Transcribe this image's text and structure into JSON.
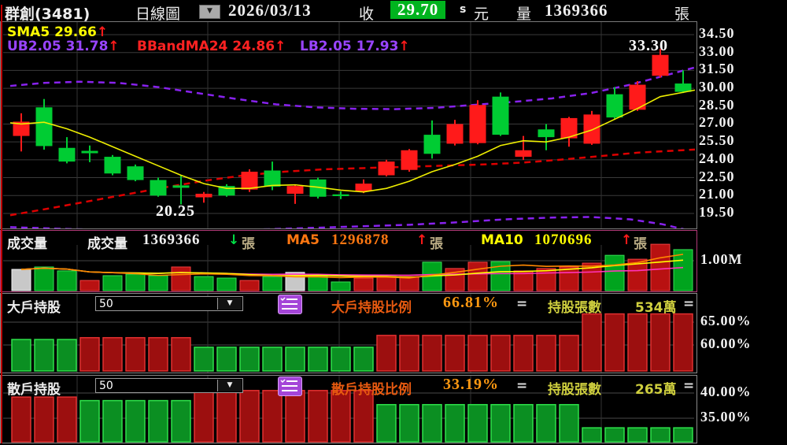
{
  "header": {
    "stock": "群創(3481)",
    "period": "日線圖",
    "date": "2026/03/13",
    "close_label": "收",
    "close": "29.70",
    "close_suffix": "s",
    "unit": "元",
    "volume_label": "量",
    "volume": "1369366",
    "volume_unit": "張",
    "close_box_color": "#00b41e"
  },
  "main": {
    "indicators": [
      {
        "label": "SMA5",
        "value": "29.66",
        "arrow": "↑",
        "color": "#ffff00"
      },
      {
        "label": "UB2.05",
        "value": "31.78",
        "arrow": "↑",
        "color": "#9944ff"
      },
      {
        "label": "BBandMA24",
        "value": "24.86",
        "arrow": "↑",
        "color": "#ff2222"
      },
      {
        "label": "LB2.05",
        "value": "17.93",
        "arrow": "↑",
        "color": "#9944ff"
      }
    ],
    "annotations": [
      {
        "text": "33.30"
      },
      {
        "text": "20.25"
      }
    ]
  },
  "volume_panel": {
    "title": "成交量",
    "vol_label": "成交量",
    "vol_value": "1369366",
    "vol_arrow": "↓",
    "vol_unit": "張",
    "ma5_label": "MA5",
    "ma5_value": "1296878",
    "ma5_arrow": "↑",
    "ma5_unit": "張",
    "ma10_label": "MA10",
    "ma10_value": "1070696",
    "ma10_arrow": "↑",
    "ma10_unit": "張"
  },
  "holder_panels": [
    {
      "title": "大戶持股",
      "dropdown_value": "50",
      "ratio_label": "大戶持股比例",
      "ratio_value": "66.81%",
      "eq": "=",
      "shares_label": "持股張數",
      "shares_value": "534萬",
      "eq2": "="
    },
    {
      "title": "散戶持股",
      "dropdown_value": "50",
      "ratio_label": "散戶持股比例",
      "ratio_value": "33.19%",
      "eq": "=",
      "shares_label": "持股張數",
      "shares_value": "265萬",
      "eq2": "="
    }
  ],
  "colors": {
    "candle_up": "#ff1a1a",
    "candle_down": "#00cc33",
    "bar_red": "#b81111",
    "bar_green": "#00a41e",
    "bar_gray": "#c8c8c8",
    "sma5": "#eeee00",
    "band": "#8822ee",
    "mid_band": "#dd0000",
    "vol_ma5": "#ff8800",
    "vol_ma10": "#ffff00",
    "vol_ma20": "#ff33bb",
    "grid": "#3a3a3a"
  },
  "chart_data": [
    {
      "type": "candlestick",
      "title": "daily price with SMA5 and Bollinger bands",
      "ylim": [
        18.0,
        34.9
      ],
      "y_ticks": [
        34.5,
        33.0,
        31.5,
        30.0,
        28.5,
        27.0,
        25.5,
        24.0,
        22.5,
        21.0,
        19.5
      ],
      "high_label": "33.30",
      "low_label": "20.25",
      "low_label_index": 7,
      "high_label_index": 28,
      "candles": [
        {
          "o": 26.0,
          "h": 27.9,
          "l": 24.7,
          "c": 27.2,
          "dir": "u"
        },
        {
          "o": 28.4,
          "h": 29.1,
          "l": 24.85,
          "c": 25.15,
          "dir": "d"
        },
        {
          "o": 25.0,
          "h": 25.9,
          "l": 23.7,
          "c": 23.85,
          "dir": "d"
        },
        {
          "o": 24.75,
          "h": 25.2,
          "l": 23.8,
          "c": 24.55,
          "dir": "d"
        },
        {
          "o": 24.25,
          "h": 24.4,
          "l": 22.7,
          "c": 22.85,
          "dir": "d"
        },
        {
          "o": 23.45,
          "h": 23.6,
          "l": 22.2,
          "c": 22.3,
          "dir": "d"
        },
        {
          "o": 22.3,
          "h": 22.5,
          "l": 20.9,
          "c": 21.0,
          "dir": "d"
        },
        {
          "o": 21.85,
          "h": 22.7,
          "l": 20.25,
          "c": 21.65,
          "dir": "d"
        },
        {
          "o": 20.85,
          "h": 21.3,
          "l": 20.4,
          "c": 21.15,
          "dir": "u"
        },
        {
          "o": 21.8,
          "h": 21.95,
          "l": 20.9,
          "c": 21.0,
          "dir": "d"
        },
        {
          "o": 21.5,
          "h": 23.2,
          "l": 21.3,
          "c": 23.0,
          "dir": "u"
        },
        {
          "o": 23.1,
          "h": 23.85,
          "l": 21.45,
          "c": 21.75,
          "dir": "d"
        },
        {
          "o": 21.15,
          "h": 21.9,
          "l": 20.3,
          "c": 21.8,
          "dir": "u"
        },
        {
          "o": 22.35,
          "h": 22.5,
          "l": 20.75,
          "c": 20.9,
          "dir": "d"
        },
        {
          "o": 21.1,
          "h": 21.35,
          "l": 20.7,
          "c": 20.95,
          "dir": "d"
        },
        {
          "o": 21.35,
          "h": 22.35,
          "l": 21.2,
          "c": 22.0,
          "dir": "u"
        },
        {
          "o": 22.7,
          "h": 24.0,
          "l": 22.6,
          "c": 23.85,
          "dir": "u"
        },
        {
          "o": 23.15,
          "h": 24.9,
          "l": 23.0,
          "c": 24.8,
          "dir": "u"
        },
        {
          "o": 26.1,
          "h": 27.3,
          "l": 24.1,
          "c": 24.5,
          "dir": "d"
        },
        {
          "o": 25.35,
          "h": 27.35,
          "l": 25.2,
          "c": 27.0,
          "dir": "u"
        },
        {
          "o": 25.4,
          "h": 29.0,
          "l": 25.3,
          "c": 28.6,
          "dir": "u"
        },
        {
          "o": 29.3,
          "h": 29.65,
          "l": 26.0,
          "c": 26.1,
          "dir": "d"
        },
        {
          "o": 24.25,
          "h": 26.0,
          "l": 24.0,
          "c": 24.8,
          "dir": "u"
        },
        {
          "o": 26.55,
          "h": 27.0,
          "l": 24.8,
          "c": 25.9,
          "dir": "d"
        },
        {
          "o": 25.8,
          "h": 27.6,
          "l": 25.1,
          "c": 27.5,
          "dir": "u"
        },
        {
          "o": 25.35,
          "h": 28.1,
          "l": 25.25,
          "c": 27.8,
          "dir": "u"
        },
        {
          "o": 29.5,
          "h": 30.1,
          "l": 27.4,
          "c": 27.55,
          "dir": "d"
        },
        {
          "o": 28.2,
          "h": 30.6,
          "l": 28.1,
          "c": 30.3,
          "dir": "u"
        },
        {
          "o": 31.05,
          "h": 33.3,
          "l": 30.9,
          "c": 32.8,
          "dir": "u"
        },
        {
          "o": 30.4,
          "h": 31.5,
          "l": 29.6,
          "c": 29.7,
          "dir": "d"
        }
      ],
      "overlays": {
        "sma5": [
          [
            12,
            27.1
          ],
          [
            26,
            27.0
          ],
          [
            55,
            27.15
          ],
          [
            84,
            26.6
          ],
          [
            113,
            25.9
          ],
          [
            142,
            25.1
          ],
          [
            171,
            24.3
          ],
          [
            200,
            23.5
          ],
          [
            229,
            22.7
          ],
          [
            258,
            22.0
          ],
          [
            287,
            21.6
          ],
          [
            316,
            21.6
          ],
          [
            345,
            21.85
          ],
          [
            374,
            21.9
          ],
          [
            403,
            21.7
          ],
          [
            432,
            21.45
          ],
          [
            461,
            21.3
          ],
          [
            490,
            21.6
          ],
          [
            519,
            22.2
          ],
          [
            548,
            23.0
          ],
          [
            577,
            23.6
          ],
          [
            606,
            24.3
          ],
          [
            635,
            25.2
          ],
          [
            664,
            25.6
          ],
          [
            693,
            25.5
          ],
          [
            722,
            25.9
          ],
          [
            751,
            26.5
          ],
          [
            780,
            27.4
          ],
          [
            809,
            28.3
          ],
          [
            838,
            29.3
          ],
          [
            867,
            29.66
          ],
          [
            882,
            29.85
          ]
        ],
        "ub": [
          [
            12,
            30.2
          ],
          [
            55,
            30.45
          ],
          [
            100,
            30.55
          ],
          [
            150,
            30.45
          ],
          [
            200,
            30.1
          ],
          [
            250,
            29.6
          ],
          [
            300,
            29.1
          ],
          [
            350,
            28.65
          ],
          [
            400,
            28.4
          ],
          [
            450,
            28.28
          ],
          [
            500,
            28.25
          ],
          [
            550,
            28.35
          ],
          [
            600,
            28.6
          ],
          [
            650,
            28.85
          ],
          [
            700,
            29.15
          ],
          [
            750,
            29.6
          ],
          [
            800,
            30.3
          ],
          [
            840,
            31.0
          ],
          [
            882,
            31.75
          ]
        ],
        "mid": [
          [
            12,
            19.35
          ],
          [
            60,
            19.9
          ],
          [
            110,
            20.5
          ],
          [
            160,
            21.1
          ],
          [
            210,
            21.7
          ],
          [
            260,
            22.25
          ],
          [
            310,
            22.7
          ],
          [
            360,
            23.0
          ],
          [
            410,
            23.2
          ],
          [
            460,
            23.3
          ],
          [
            510,
            23.4
          ],
          [
            560,
            23.5
          ],
          [
            610,
            23.6
          ],
          [
            660,
            23.75
          ],
          [
            710,
            24.0
          ],
          [
            760,
            24.3
          ],
          [
            810,
            24.6
          ],
          [
            882,
            24.86
          ]
        ],
        "lb": [
          [
            12,
            18.35
          ],
          [
            80,
            18.2
          ],
          [
            150,
            18.1
          ],
          [
            220,
            18.05
          ],
          [
            300,
            18.1
          ],
          [
            380,
            18.25
          ],
          [
            450,
            18.4
          ],
          [
            520,
            18.55
          ],
          [
            580,
            18.75
          ],
          [
            640,
            19.0
          ],
          [
            700,
            19.15
          ],
          [
            750,
            19.2
          ],
          [
            800,
            19.0
          ],
          [
            840,
            18.6
          ],
          [
            882,
            17.95
          ]
        ]
      }
    },
    {
      "type": "bar",
      "title": "volume (million shares)",
      "values": [
        0.71,
        0.79,
        0.66,
        0.34,
        0.5,
        0.55,
        0.5,
        0.79,
        0.47,
        0.42,
        0.34,
        0.47,
        0.61,
        0.47,
        0.29,
        0.42,
        0.47,
        0.47,
        0.95,
        0.74,
        0.95,
        0.97,
        0.66,
        0.74,
        0.79,
        0.92,
        1.18,
        1.05,
        1.55,
        1.37
      ],
      "bar_colors": [
        "n",
        "g",
        "g",
        "r",
        "g",
        "g",
        "g",
        "r",
        "g",
        "g",
        "r",
        "g",
        "n",
        "g",
        "g",
        "r",
        "r",
        "r",
        "g",
        "r",
        "r",
        "g",
        "r",
        "r",
        "r",
        "r",
        "g",
        "r",
        "r",
        "g"
      ],
      "gridline": {
        "value": 1.0,
        "label": "1.00M"
      }
    },
    {
      "type": "bar",
      "title": "large holders ratio %",
      "values": [
        61.2,
        61.2,
        61.2,
        61.6,
        61.6,
        61.6,
        61.6,
        61.6,
        59.5,
        59.5,
        59.5,
        59.5,
        59.5,
        59.5,
        59.5,
        59.5,
        62.1,
        62.1,
        62.1,
        62.1,
        62.1,
        62.1,
        62.1,
        62.1,
        62.1,
        66.8,
        66.8,
        66.8,
        66.8,
        66.8
      ],
      "bar_colors": [
        "g",
        "g",
        "g",
        "r",
        "r",
        "r",
        "r",
        "r",
        "g",
        "g",
        "g",
        "g",
        "g",
        "g",
        "g",
        "g",
        "r",
        "r",
        "r",
        "r",
        "r",
        "r",
        "r",
        "r",
        "r",
        "r",
        "r",
        "r",
        "r",
        "r"
      ],
      "y_ticks": [
        {
          "v": 65,
          "label": "65.00%"
        },
        {
          "v": 60,
          "label": "60.00%"
        }
      ]
    },
    {
      "type": "bar",
      "title": "retail holders ratio %",
      "values": [
        39.2,
        39.2,
        39.2,
        38.5,
        38.5,
        38.5,
        38.5,
        38.5,
        40.5,
        40.5,
        40.5,
        40.5,
        40.5,
        40.5,
        40.5,
        40.5,
        37.7,
        37.7,
        37.7,
        37.7,
        37.7,
        37.7,
        37.7,
        37.7,
        37.7,
        33.1,
        33.1,
        33.1,
        33.1,
        33.1
      ],
      "bar_colors": [
        "r",
        "r",
        "r",
        "g",
        "g",
        "g",
        "g",
        "g",
        "r",
        "r",
        "r",
        "r",
        "r",
        "r",
        "r",
        "r",
        "g",
        "g",
        "g",
        "g",
        "g",
        "g",
        "g",
        "g",
        "g",
        "g",
        "g",
        "g",
        "g",
        "g"
      ],
      "y_ticks": [
        {
          "v": 40,
          "label": "40.00%"
        },
        {
          "v": 35,
          "label": "35.00%"
        }
      ]
    }
  ]
}
